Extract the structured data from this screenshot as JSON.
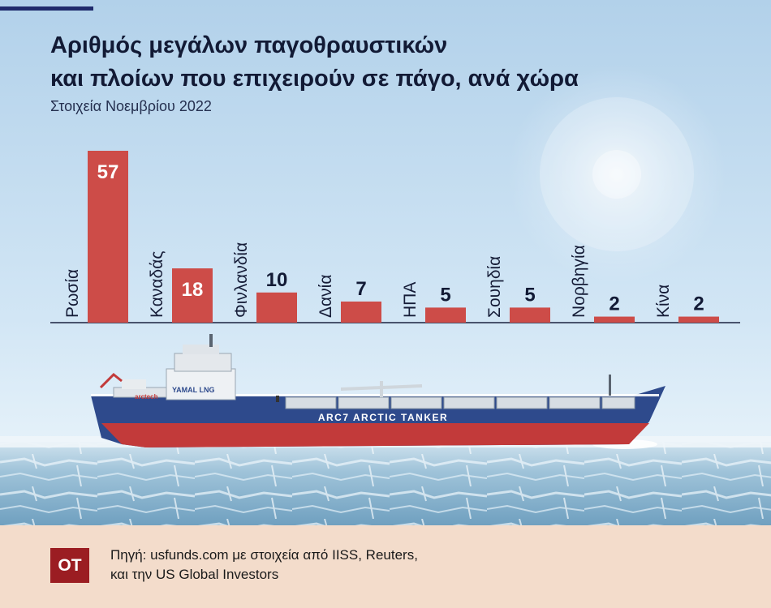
{
  "header": {
    "title_line1": "Αριθμός μεγάλων παγοθραυστικών",
    "title_line2": "και πλοίων που επιχειρούν σε πάγο, ανά χώρα",
    "subtitle": "Στοιχεία Νοεμβρίου 2022"
  },
  "ship": {
    "brand_label": "YAMAL LNG",
    "maker_label": "arctech",
    "hull_label": "ARC7 ARCTIC TANKER"
  },
  "footer": {
    "logo": "OT",
    "source_line1": "Πηγή: usfunds.com με στοιχεία από IISS, Reuters,",
    "source_line2": "και την US Global Investors"
  },
  "colors": {
    "bar": "#cd4c48",
    "sky_top": "#b2d1ea",
    "sky_bottom": "#e3f0f9",
    "hull_blue": "#2e4a8c",
    "hull_red": "#c23a3a",
    "footer_bg": "#f3dccb",
    "logo_bg": "#9b1d22"
  },
  "chart_data": {
    "type": "bar",
    "title": "Αριθμός μεγάλων παγοθραυστικών και πλοίων που επιχειρούν σε πάγο, ανά χώρα",
    "subtitle": "Στοιχεία Νοεμβρίου 2022",
    "xlabel": "",
    "ylabel": "",
    "categories": [
      "Ρωσία",
      "Καναδάς",
      "Φινλανδία",
      "Δανία",
      "ΗΠΑ",
      "Σουηδία",
      "Νορβηγία",
      "Κίνα"
    ],
    "values": [
      57,
      18,
      10,
      7,
      5,
      5,
      2,
      2
    ],
    "ylim": [
      0,
      57
    ],
    "grid": false,
    "legend": "none",
    "data_labels": true
  }
}
